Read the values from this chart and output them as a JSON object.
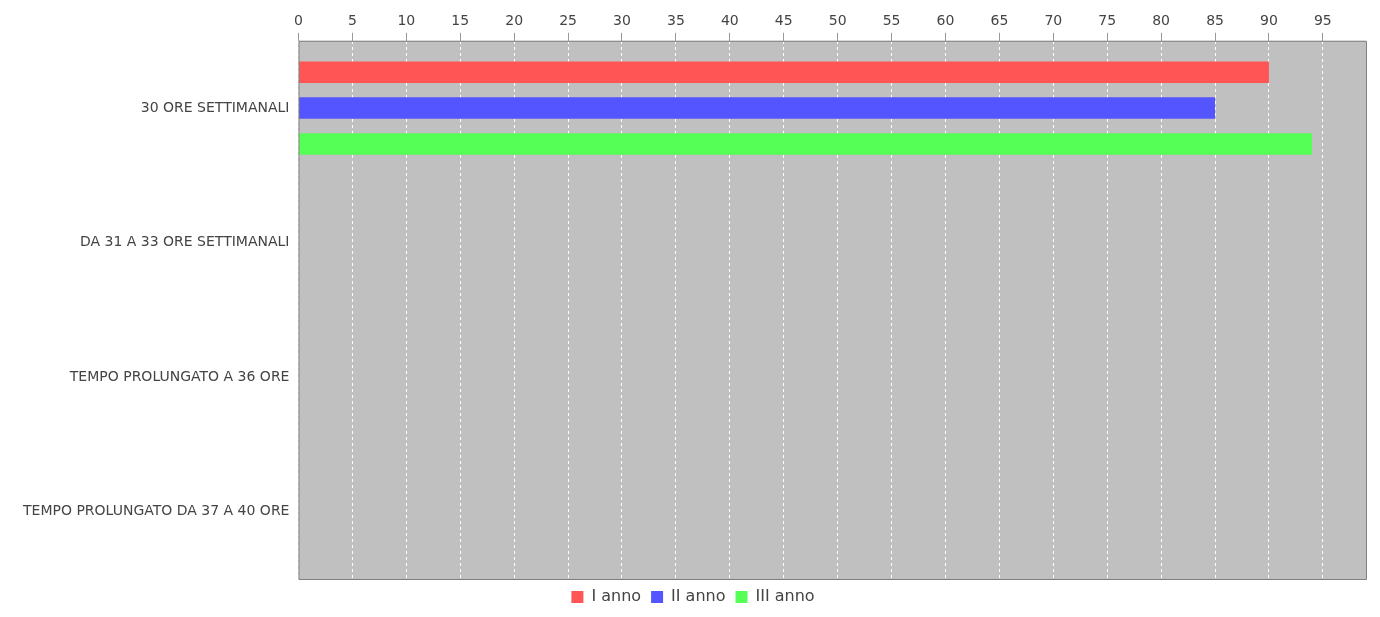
{
  "chart_data": {
    "type": "bar",
    "orientation": "horizontal",
    "categories": [
      "30 ORE SETTIMANALI",
      "DA 31 A 33 ORE SETTIMANALI",
      "TEMPO PROLUNGATO A 36 ORE",
      "TEMPO PROLUNGATO DA 37 A 40 ORE"
    ],
    "series": [
      {
        "name": "I anno",
        "color": "#ff5555",
        "values": [
          90,
          0,
          0,
          0
        ]
      },
      {
        "name": "II anno",
        "color": "#5555ff",
        "values": [
          85,
          0,
          0,
          0
        ]
      },
      {
        "name": "III anno",
        "color": "#55ff55",
        "values": [
          94,
          0,
          0,
          0
        ]
      }
    ],
    "xlim": [
      0,
      99
    ],
    "xticks": [
      0,
      5,
      10,
      15,
      20,
      25,
      30,
      35,
      40,
      45,
      50,
      55,
      60,
      65,
      70,
      75,
      80,
      85,
      90,
      95
    ],
    "grid": "x",
    "legend": "bottom"
  }
}
